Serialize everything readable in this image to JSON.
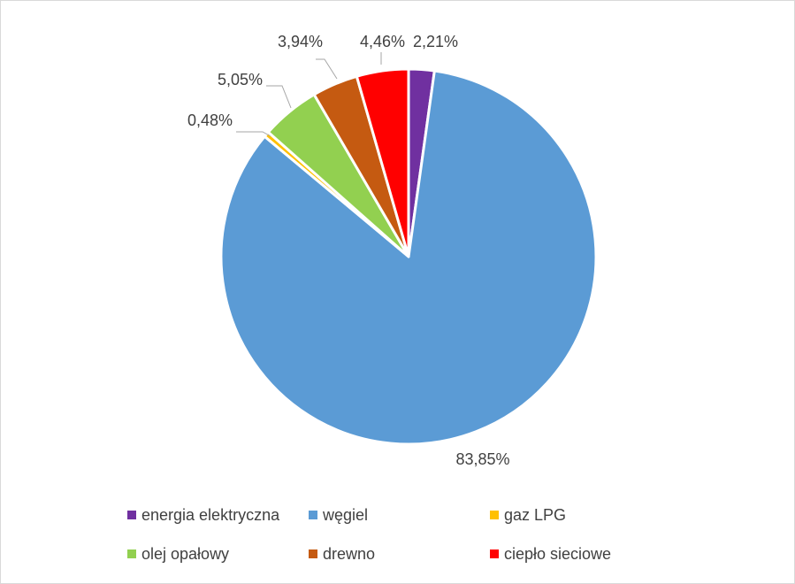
{
  "chart_data": {
    "type": "pie",
    "title": "",
    "categories": [
      "energia elektryczna",
      "węgiel",
      "gaz LPG",
      "olej opałowy",
      "drewno",
      "ciepło sieciowe"
    ],
    "values": [
      2.21,
      83.85,
      0.48,
      5.05,
      3.94,
      4.46
    ],
    "labels": [
      "2,21%",
      "83,85%",
      "0,48%",
      "5,05%",
      "3,94%",
      "4,46%"
    ],
    "colors": [
      "#7030a0",
      "#5b9bd5",
      "#ffc000",
      "#92d050",
      "#c55a11",
      "#ff0000"
    ],
    "start_angle_deg": 0,
    "direction": "clockwise",
    "legend": {
      "position": "bottom",
      "items": [
        {
          "label": "energia elektryczna",
          "color": "#7030a0"
        },
        {
          "label": "węgiel",
          "color": "#5b9bd5"
        },
        {
          "label": "gaz LPG",
          "color": "#ffc000"
        },
        {
          "label": "olej opałowy",
          "color": "#92d050"
        },
        {
          "label": "drewno",
          "color": "#c55a11"
        },
        {
          "label": "ciepło sieciowe",
          "color": "#ff0000"
        }
      ]
    }
  }
}
